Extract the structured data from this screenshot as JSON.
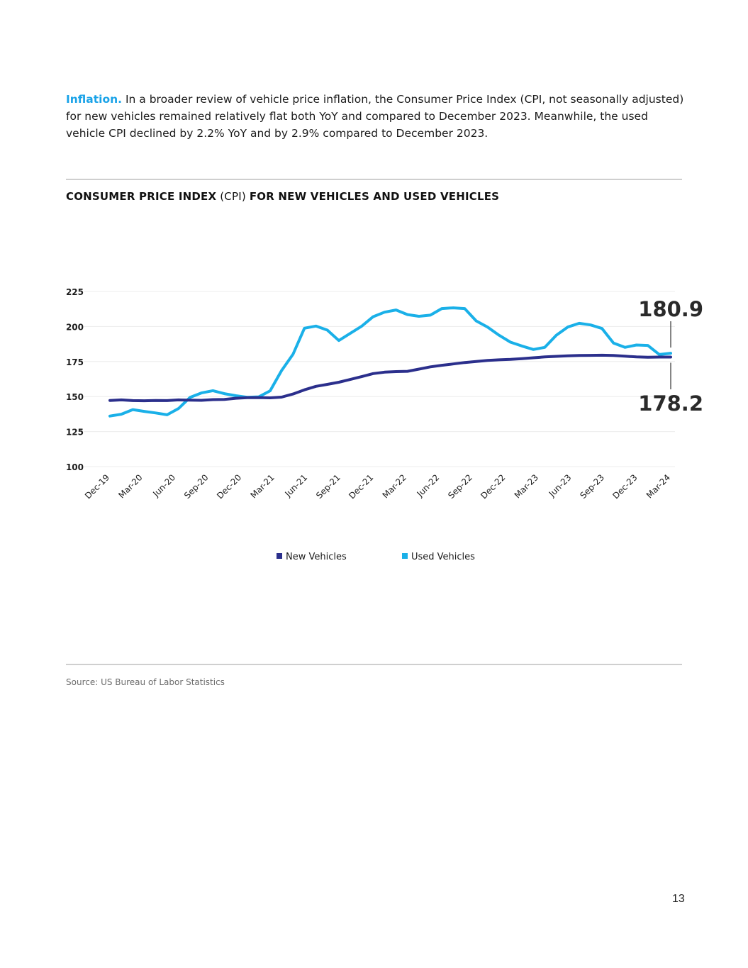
{
  "intro": {
    "lead": "Inflation.",
    "text": " In a broader review of vehicle price inflation, the Consumer Price Index (CPI, not seasonally adjusted) for new vehicles remained relatively flat both YoY and compared to December 2023. Meanwhile, the used vehicle CPI declined by 2.2% YoY and by 2.9% compared to December 2023."
  },
  "title": {
    "part1": "CONSUMER PRICE INDEX",
    "part2": " (CPI) ",
    "part3": "FOR NEW VEHICLES AND USED VEHICLES"
  },
  "colors": {
    "new": "#2b2f8c",
    "used": "#1ab0e8",
    "lead": "#1aa3e8"
  },
  "chart_data": {
    "type": "line",
    "title": "CONSUMER PRICE INDEX (CPI) FOR NEW VEHICLES AND USED VEHICLES",
    "xlabel": "",
    "ylabel": "",
    "ylim": [
      100,
      225
    ],
    "yticks": [
      225,
      200,
      175,
      150,
      125,
      100
    ],
    "x_tick_labels": [
      "Dec-19",
      "Mar-20",
      "Jun-20",
      "Sep-20",
      "Dec-20",
      "Mar-21",
      "Jun-21",
      "Sep-21",
      "Dec-21",
      "Mar-22",
      "Jun-22",
      "Sep-22",
      "Dec-22",
      "Mar-23",
      "Jun-23",
      "Sep-23",
      "Dec-23",
      "Mar-24"
    ],
    "grid": true,
    "legend": "bottom-center",
    "series": [
      {
        "name": "New Vehicles",
        "values": [
          147.2,
          147.6,
          147.1,
          147.0,
          147.2,
          147.1,
          147.6,
          147.4,
          147.3,
          147.8,
          148.0,
          148.8,
          149.2,
          149.3,
          149.1,
          149.6,
          151.8,
          154.8,
          157.3,
          158.7,
          160.2,
          162.2,
          164.2,
          166.4,
          167.4,
          167.8,
          168.0,
          169.6,
          171.2,
          172.3,
          173.3,
          174.3,
          175.0,
          175.8,
          176.2,
          176.5,
          177.1,
          177.7,
          178.3,
          178.7,
          179.1,
          179.3,
          179.4,
          179.5,
          179.3,
          178.8,
          178.3,
          178.1,
          178.2,
          178.2
        ]
      },
      {
        "name": "Used Vehicles",
        "values": [
          136.1,
          137.4,
          140.7,
          139.4,
          138.3,
          137.0,
          141.5,
          149.4,
          152.6,
          154.2,
          152.1,
          150.6,
          149.5,
          149.8,
          154.1,
          168.5,
          180.2,
          198.8,
          200.3,
          197.4,
          190.0,
          195.1,
          200.2,
          207.0,
          210.2,
          211.8,
          208.5,
          207.3,
          208.1,
          212.8,
          213.3,
          212.8,
          204.0,
          199.6,
          193.8,
          188.8,
          186.1,
          183.6,
          185.1,
          193.7,
          199.6,
          202.3,
          201.1,
          198.6,
          188.2,
          185.1,
          186.8,
          186.5,
          180.0,
          180.9
        ]
      }
    ],
    "annotations": [
      {
        "series": "Used Vehicles",
        "text": "180.9"
      },
      {
        "series": "New Vehicles",
        "text": "178.2"
      }
    ]
  },
  "legend": {
    "new_label": "New Vehicles",
    "used_label": "Used Vehicles"
  },
  "source": "Source: US Bureau of Labor Statistics",
  "page_number": "13"
}
